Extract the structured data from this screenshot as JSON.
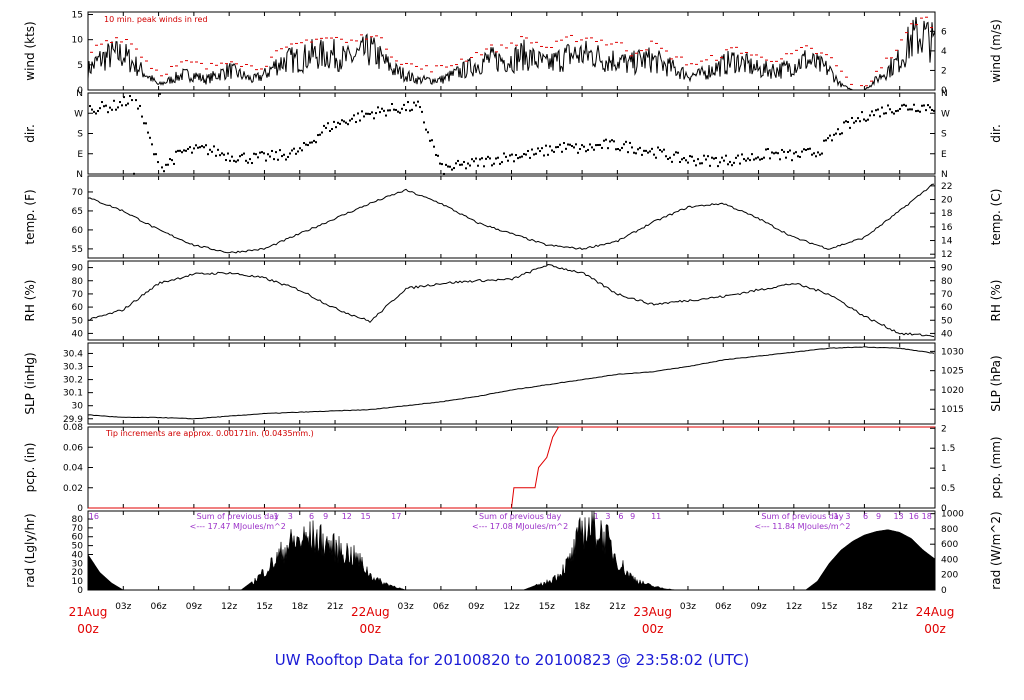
{
  "title": "UW Rooftop Data for 20100820  to  20100823 @ 23:58:02  (UTC)",
  "colors": {
    "trace": "#000000",
    "peak": "#e00000",
    "precip": "#e00000",
    "annotation": "#9b30c8",
    "title": "#1a1ad6",
    "day_labels": "#e00000"
  },
  "x_axis": {
    "hours_total": 72,
    "tick_labels": [
      "03z",
      "06z",
      "09z",
      "12z",
      "15z",
      "18z",
      "21z",
      "03z",
      "06z",
      "09z",
      "12z",
      "15z",
      "18z",
      "21z",
      "03z",
      "06z",
      "09z",
      "12z",
      "15z",
      "18z",
      "21z"
    ],
    "tick_hours": [
      3,
      6,
      9,
      12,
      15,
      18,
      21,
      27,
      30,
      33,
      36,
      39,
      42,
      45,
      51,
      54,
      57,
      60,
      63,
      66,
      69
    ],
    "day_labels": [
      {
        "date": "21Aug",
        "time": "00z",
        "hour": 0
      },
      {
        "date": "22Aug",
        "time": "00z",
        "hour": 24
      },
      {
        "date": "23Aug",
        "time": "00z",
        "hour": 48
      },
      {
        "date": "24Aug",
        "time": "00z",
        "hour": 72
      }
    ]
  },
  "chart_data": [
    {
      "type": "line",
      "panel": "wind",
      "ylabel_left": "wind (kts)",
      "ylabel_right": "wind (m/s)",
      "ylim": [
        0,
        15.5
      ],
      "yticks_left": [
        0,
        5,
        10,
        15
      ],
      "yticks_right": [
        0,
        2,
        4,
        6
      ],
      "right_scale_factor": 0.5144,
      "annotation": "10 min. peak winds in red",
      "series": [
        {
          "x": [
            0,
            1,
            2,
            3,
            4,
            5,
            6,
            7,
            8,
            9,
            10,
            11,
            12,
            13,
            14,
            15,
            16,
            17,
            18,
            19,
            20,
            21,
            22,
            23,
            24,
            25,
            26,
            27,
            28,
            29,
            30,
            31,
            32,
            33,
            34,
            35,
            36,
            37,
            38,
            39,
            40,
            41,
            42,
            43,
            44,
            45,
            46,
            47,
            48,
            49,
            50,
            51,
            52,
            53,
            54,
            55,
            56,
            57,
            58,
            59,
            60,
            61,
            62,
            63,
            64,
            65,
            66,
            67,
            68,
            69,
            70,
            71,
            72
          ],
          "values": [
            4,
            6,
            7,
            7,
            5,
            3,
            1,
            2,
            3,
            3,
            2,
            3,
            4,
            3,
            2,
            3,
            5,
            6,
            6,
            7,
            7,
            7,
            6,
            7,
            8,
            6,
            4,
            3,
            2,
            2,
            2,
            3,
            4,
            5,
            6,
            6,
            6,
            7,
            6,
            5,
            6,
            7,
            7,
            7,
            6,
            6,
            5,
            6,
            6,
            5,
            4,
            3,
            3,
            4,
            5,
            6,
            5,
            4,
            4,
            4,
            5,
            6,
            5,
            4,
            1,
            0,
            0,
            2,
            4,
            6,
            10,
            11,
            9
          ]
        },
        {
          "x": [
            0,
            1,
            2,
            3,
            4,
            5,
            6,
            7,
            8,
            9,
            10,
            11,
            12,
            13,
            14,
            15,
            16,
            17,
            18,
            19,
            20,
            21,
            22,
            23,
            24,
            25,
            26,
            27,
            28,
            29,
            30,
            31,
            32,
            33,
            34,
            35,
            36,
            37,
            38,
            39,
            40,
            41,
            42,
            43,
            44,
            45,
            46,
            47,
            48,
            49,
            50,
            51,
            52,
            53,
            54,
            55,
            56,
            57,
            58,
            59,
            60,
            61,
            62,
            63,
            64,
            65,
            66,
            67,
            68,
            69,
            70,
            71,
            72
          ],
          "values": [
            7,
            9,
            10,
            10,
            8,
            5,
            3,
            4,
            5,
            5,
            4,
            5,
            6,
            5,
            4,
            5,
            7,
            8,
            9,
            10,
            10,
            10,
            9,
            10,
            11,
            9,
            6,
            5,
            4,
            4,
            4,
            5,
            6,
            7,
            8,
            8,
            9,
            10,
            9,
            8,
            9,
            10,
            10,
            10,
            9,
            9,
            7,
            8,
            9,
            7,
            6,
            5,
            5,
            6,
            7,
            8,
            7,
            6,
            6,
            6,
            7,
            8,
            7,
            6,
            3,
            0,
            0,
            4,
            6,
            9,
            13,
            14,
            12
          ]
        }
      ]
    },
    {
      "type": "scatter",
      "panel": "direction",
      "ylabel_left": "dir.",
      "ylabel_right": "dir.",
      "ylim": [
        0,
        360
      ],
      "yticks_left": [
        "N",
        "E",
        "S",
        "W",
        "N"
      ],
      "x": [
        0,
        2,
        4,
        6,
        8,
        10,
        12,
        14,
        16,
        18,
        20,
        22,
        24,
        26,
        28,
        30,
        32,
        34,
        36,
        38,
        40,
        42,
        44,
        46,
        48,
        50,
        52,
        54,
        56,
        58,
        60,
        62,
        64,
        66,
        68,
        70,
        72
      ],
      "values": [
        290,
        300,
        340,
        20,
        100,
        110,
        80,
        70,
        80,
        100,
        200,
        240,
        270,
        290,
        300,
        20,
        40,
        60,
        80,
        90,
        120,
        110,
        130,
        120,
        100,
        70,
        60,
        60,
        70,
        90,
        80,
        100,
        200,
        260,
        290,
        300,
        300
      ]
    },
    {
      "type": "line",
      "panel": "temperature",
      "ylabel_left": "temp. (F)",
      "ylabel_right": "temp. (C)",
      "ylim": [
        52.6,
        74.2
      ],
      "yticks_left": [
        55,
        60,
        65,
        70
      ],
      "yticks_right": [
        12,
        14,
        16,
        18,
        20,
        22
      ],
      "x": [
        0,
        3,
        6,
        9,
        12,
        15,
        18,
        21,
        24,
        27,
        30,
        33,
        36,
        39,
        42,
        45,
        48,
        51,
        54,
        57,
        60,
        63,
        66,
        69,
        72
      ],
      "values": [
        68.5,
        65,
        60,
        56,
        54,
        55,
        59,
        63,
        67,
        70.5,
        67,
        62,
        59,
        56,
        55,
        57,
        62,
        66,
        67,
        63,
        58,
        55,
        58,
        65,
        72.5
      ]
    },
    {
      "type": "line",
      "panel": "rh",
      "ylabel_left": "RH (%)",
      "ylabel_right": "RH (%)",
      "ylim": [
        35,
        95
      ],
      "yticks_left": [
        40,
        50,
        60,
        70,
        80,
        90
      ],
      "x": [
        0,
        3,
        6,
        9,
        12,
        15,
        18,
        21,
        24,
        27,
        30,
        33,
        36,
        39,
        42,
        45,
        48,
        51,
        54,
        57,
        60,
        63,
        66,
        69,
        72
      ],
      "values": [
        50,
        58,
        78,
        85,
        86,
        82,
        73,
        59,
        49,
        74,
        78,
        80,
        81,
        92,
        86,
        70,
        62,
        65,
        68,
        73,
        78,
        70,
        53,
        40,
        38
      ]
    },
    {
      "type": "line",
      "panel": "slp",
      "ylabel_left": "SLP (inHg)",
      "ylabel_right": "SLP (hPa)",
      "ylim": [
        29.86,
        30.48
      ],
      "yticks_left": [
        29.9,
        30.0,
        30.1,
        30.2,
        30.3,
        30.4
      ],
      "yticks_right": [
        1015,
        1020,
        1025,
        1030
      ],
      "x": [
        0,
        3,
        6,
        9,
        12,
        15,
        18,
        21,
        24,
        27,
        30,
        33,
        36,
        39,
        42,
        45,
        48,
        51,
        54,
        57,
        60,
        63,
        66,
        69,
        72
      ],
      "values": [
        29.93,
        29.91,
        29.91,
        29.9,
        29.92,
        29.94,
        29.95,
        29.96,
        29.97,
        30.0,
        30.03,
        30.07,
        30.12,
        30.16,
        30.2,
        30.24,
        30.26,
        30.3,
        30.35,
        30.38,
        30.41,
        30.44,
        30.45,
        30.44,
        30.4
      ]
    },
    {
      "type": "line",
      "panel": "precipitation",
      "ylabel_left": "pcp. (in)",
      "ylabel_right": "pcp. (mm)",
      "ylim": [
        0,
        0.08
      ],
      "yticks_left": [
        0,
        0.02,
        0.04,
        0.06,
        0.08
      ],
      "yticks_right": [
        0,
        0.5,
        1,
        1.5,
        2
      ],
      "annotation": "Tip increments are approx. 0.00171in. (0.0435mm.)",
      "x": [
        0,
        36,
        36.2,
        38,
        38.3,
        39,
        39.5,
        40,
        72
      ],
      "values": [
        0,
        0,
        0.02,
        0.02,
        0.04,
        0.05,
        0.07,
        0.08,
        0.08
      ]
    },
    {
      "type": "area",
      "panel": "radiation",
      "ylabel_left": "rad (Lgly/hr)",
      "ylabel_right": "rad (W/m^2)",
      "ylim": [
        0,
        89
      ],
      "yticks_left": [
        0,
        10,
        20,
        30,
        40,
        50,
        60,
        70,
        80
      ],
      "yticks_right": [
        0,
        200,
        400,
        600,
        800,
        1000
      ],
      "x": [
        0,
        1,
        2,
        3,
        13,
        14,
        15,
        16,
        17,
        18,
        19,
        20,
        21,
        22,
        23,
        24,
        25,
        26,
        27,
        37,
        38,
        39,
        40,
        41,
        42,
        43,
        44,
        45,
        46,
        47,
        48,
        49,
        50,
        51,
        61,
        62,
        63,
        64,
        65,
        66,
        67,
        68,
        69,
        70,
        71,
        72
      ],
      "values": [
        40,
        20,
        8,
        0,
        0,
        10,
        25,
        40,
        60,
        65,
        70,
        65,
        55,
        50,
        40,
        20,
        10,
        5,
        0,
        0,
        5,
        10,
        20,
        40,
        80,
        85,
        70,
        40,
        20,
        10,
        5,
        2,
        0,
        0,
        0,
        10,
        30,
        45,
        55,
        62,
        66,
        68,
        65,
        58,
        45,
        35
      ],
      "daily_totals": [
        {
          "line1": "Sum of previous day",
          "line2": "<--- 17.47 MJoules/m^2",
          "hour": 9.5
        },
        {
          "line1": "Sum of previous day",
          "line2": "<--- 17.08 MJoules/m^2",
          "hour": 33.5
        },
        {
          "line1": "Sum of previous day",
          "line2": "<--- 11.84 MJoules/m^2",
          "hour": 57.5
        }
      ],
      "hour_markers": [
        {
          "label": "16",
          "hour": 0.5
        },
        {
          "label": "1",
          "hour": 16
        },
        {
          "label": "3",
          "hour": 17.2
        },
        {
          "label": "6",
          "hour": 19
        },
        {
          "label": "9",
          "hour": 20.2
        },
        {
          "label": "12",
          "hour": 22
        },
        {
          "label": "15",
          "hour": 23.6
        },
        {
          "label": "17",
          "hour": 26.2
        },
        {
          "label": "1",
          "hour": 43.2
        },
        {
          "label": "3",
          "hour": 44.2
        },
        {
          "label": "6",
          "hour": 45.3
        },
        {
          "label": "9",
          "hour": 46.3
        },
        {
          "label": "11",
          "hour": 48.3
        },
        {
          "label": "1",
          "hour": 63.6
        },
        {
          "label": "3",
          "hour": 64.6
        },
        {
          "label": "6",
          "hour": 66.1
        },
        {
          "label": "9",
          "hour": 67.2
        },
        {
          "label": "13",
          "hour": 68.9
        },
        {
          "label": "16",
          "hour": 70.2
        },
        {
          "label": "18",
          "hour": 71.3
        }
      ]
    }
  ]
}
